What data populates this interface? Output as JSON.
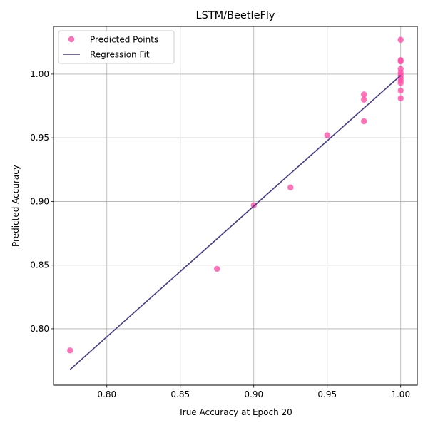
{
  "chart_data": {
    "type": "scatter",
    "title": "LSTM/BeetleFly",
    "xlabel": "True Accuracy at Epoch 20",
    "ylabel": "Predicted Accuracy",
    "xlim": [
      0.7637,
      1.0113
    ],
    "ylim": [
      0.7557,
      1.0375
    ],
    "xticks": [
      "0.80",
      "0.85",
      "0.90",
      "0.95",
      "1.00"
    ],
    "yticks": [
      "0.80",
      "0.85",
      "0.90",
      "0.95",
      "1.00"
    ],
    "grid": true,
    "legend_position": "top-left",
    "series": [
      {
        "name": "Predicted Points",
        "type": "scatter",
        "color": "#ff4fa7",
        "points": [
          [
            0.775,
            0.783
          ],
          [
            0.875,
            0.847
          ],
          [
            0.9,
            0.897
          ],
          [
            0.925,
            0.911
          ],
          [
            0.95,
            0.952
          ],
          [
            0.975,
            0.984
          ],
          [
            0.975,
            0.98
          ],
          [
            0.975,
            0.963
          ],
          [
            1.0,
            1.027
          ],
          [
            1.0,
            1.011
          ],
          [
            1.0,
            1.01
          ],
          [
            1.0,
            1.004
          ],
          [
            1.0,
            1.001
          ],
          [
            1.0,
            0.999
          ],
          [
            1.0,
            0.997
          ],
          [
            1.0,
            0.995
          ],
          [
            1.0,
            0.993
          ],
          [
            1.0,
            0.987
          ],
          [
            1.0,
            0.981
          ]
        ]
      },
      {
        "name": "Regression Fit",
        "type": "line",
        "color": "#483d8b",
        "points": [
          [
            0.775,
            0.768
          ],
          [
            1.0,
            0.999
          ]
        ]
      }
    ]
  }
}
